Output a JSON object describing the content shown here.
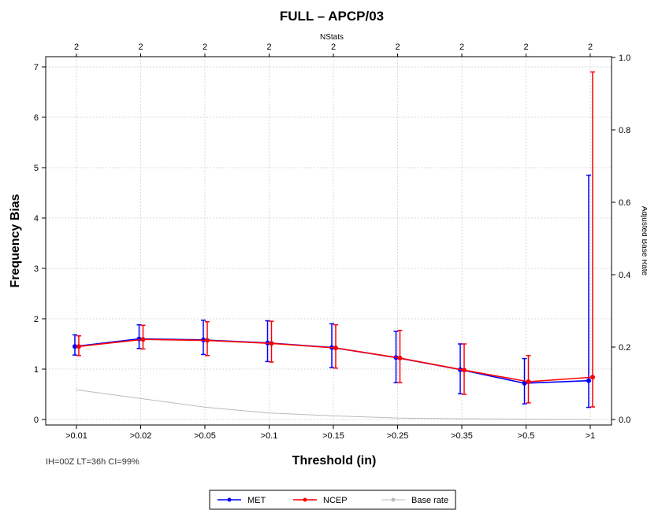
{
  "chart_data": {
    "type": "line",
    "title": "FULL – APCP/03",
    "xlabel": "Threshold (in)",
    "ylabel": "Frequency Bias",
    "y2label": "Adjusted Base Rate",
    "top_axis_label": "NStats",
    "note": "IH=00Z  LT=36h  CI=99%",
    "categories": [
      ">0.01",
      ">0.02",
      ">0.05",
      ">0.1",
      ">0.15",
      ">0.25",
      ">0.35",
      ">0.5",
      ">1"
    ],
    "nstats": [
      "2",
      "2",
      "2",
      "2",
      "2",
      "2",
      "2",
      "2",
      "2"
    ],
    "ylim": [
      0,
      7
    ],
    "yticks": [
      "0",
      "1",
      "2",
      "3",
      "4",
      "5",
      "6",
      "7"
    ],
    "y2lim": [
      0,
      1
    ],
    "y2ticks": [
      "0.0",
      "0.2",
      "0.4",
      "0.6",
      "0.8",
      "1.0"
    ],
    "grid": true,
    "legend_position": "bottom",
    "series": [
      {
        "name": "MET",
        "color": "#0000ff",
        "values": [
          1.45,
          1.6,
          1.58,
          1.52,
          1.43,
          1.23,
          0.99,
          0.72,
          0.77
        ],
        "ci_low": [
          1.28,
          1.41,
          1.29,
          1.15,
          1.03,
          0.73,
          0.51,
          0.31,
          0.24
        ],
        "ci_high": [
          1.68,
          1.88,
          1.97,
          1.96,
          1.9,
          1.75,
          1.5,
          1.21,
          4.85
        ]
      },
      {
        "name": "NCEP",
        "color": "#ff0000",
        "values": [
          1.45,
          1.59,
          1.57,
          1.51,
          1.42,
          1.22,
          0.98,
          0.75,
          0.84
        ],
        "ci_low": [
          1.27,
          1.4,
          1.27,
          1.14,
          1.02,
          0.73,
          0.5,
          0.33,
          0.25
        ],
        "ci_high": [
          1.66,
          1.87,
          1.94,
          1.95,
          1.88,
          1.77,
          1.5,
          1.27,
          6.9
        ]
      },
      {
        "name": "Base rate",
        "color": "#bbbbbb",
        "axis": "right",
        "values": [
          0.082,
          0.058,
          0.034,
          0.018,
          0.01,
          0.004,
          0.002,
          0.001,
          0.0
        ]
      }
    ]
  }
}
